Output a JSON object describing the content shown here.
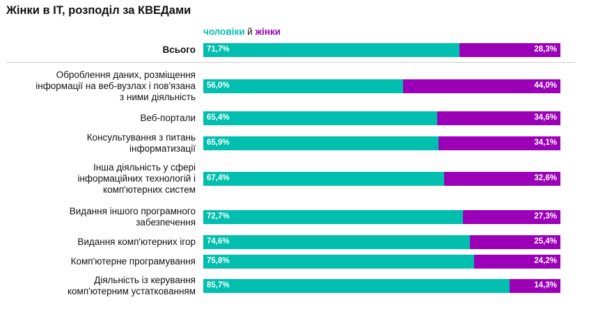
{
  "title": "Жінки в IT, розподіл за КВЕДами",
  "legend": {
    "men": "чоловіки",
    "sep": "й",
    "women": "жінки"
  },
  "colors": {
    "men": "#00bfae",
    "women": "#9b00b8"
  },
  "chart_data": {
    "type": "bar",
    "orientation": "horizontal",
    "stacked": true,
    "percent": true,
    "title": "Жінки в IT, розподіл за КВЕДами",
    "categories": [
      "Всього",
      "Оброблення даних, розміщення інформації на веб-вузлах і пов'язана з ними діяльність",
      "Веб-портали",
      "Консультування з питань інформатизації",
      "Інша діяльність у сфері інформаційних технологій і комп'ютерних систем",
      "Видання іншого програмного забезпечення",
      "Видання комп'ютерних ігор",
      "Комп'ютерне програмування",
      "Діяльність із керування комп'ютерним устаткованням"
    ],
    "category_lines": [
      [
        "Всього"
      ],
      [
        "Оброблення даних, розміщення",
        "інформації на веб-вузлах і пов'язана",
        "з ними діяльність"
      ],
      [
        "Веб-портали"
      ],
      [
        "Консультування з питань",
        "інформатизації"
      ],
      [
        "Інша діяльність у сфері",
        "інформаційних технологій і",
        "комп'ютерних систем"
      ],
      [
        "Видання іншого програмного",
        "забезпечення"
      ],
      [
        "Видання комп'ютерних ігор"
      ],
      [
        "Комп'ютерне програмування"
      ],
      [
        "Діяльність із керування",
        "комп'ютерним устаткованням"
      ]
    ],
    "series": [
      {
        "name": "чоловіки",
        "values": [
          71.7,
          56.0,
          65.4,
          65.9,
          67.4,
          72.7,
          74.6,
          75.8,
          85.7
        ],
        "labels": [
          "71,7%",
          "56,0%",
          "65,4%",
          "65,9%",
          "67,4%",
          "72,7%",
          "74,6%",
          "75,8%",
          "85,7%"
        ]
      },
      {
        "name": "жінки",
        "values": [
          28.3,
          44.0,
          34.6,
          34.1,
          32.6,
          27.3,
          25.4,
          24.2,
          14.3
        ],
        "labels": [
          "28,3%",
          "44,0%",
          "34,6%",
          "34,1%",
          "32,6%",
          "27,3%",
          "25,4%",
          "24,2%",
          "14,3%"
        ]
      }
    ],
    "xlim": [
      0,
      100
    ],
    "legend": "top"
  }
}
